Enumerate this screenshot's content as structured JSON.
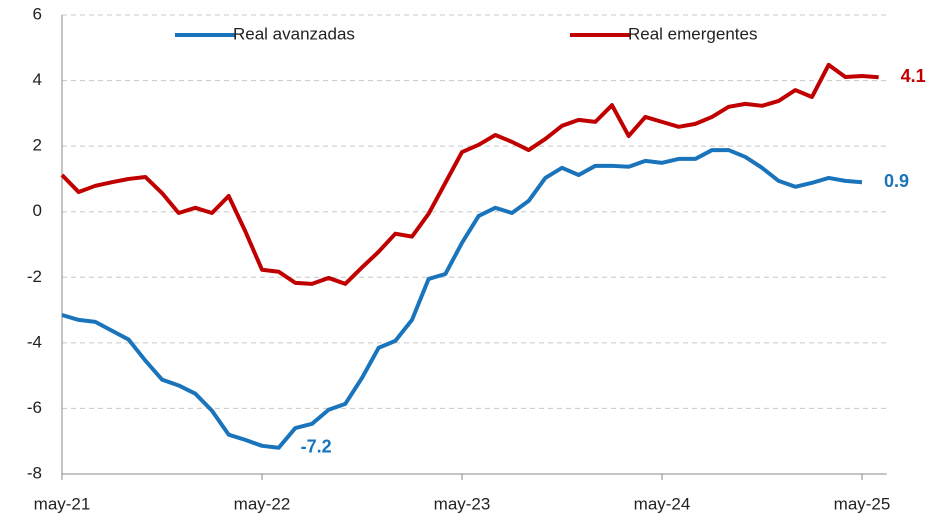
{
  "chart_data": {
    "type": "line",
    "categories": [
      "may-21",
      null,
      null,
      null,
      null,
      null,
      null,
      null,
      null,
      null,
      null,
      null,
      "may-22",
      null,
      null,
      null,
      null,
      null,
      null,
      null,
      null,
      null,
      null,
      null,
      "may-23",
      null,
      null,
      null,
      null,
      null,
      null,
      null,
      null,
      null,
      null,
      null,
      "may-24",
      null,
      null,
      null,
      null,
      null,
      null,
      null,
      null,
      null,
      null,
      null,
      "may-25",
      null
    ],
    "series": [
      {
        "name": "Real avanzadas",
        "color": "#1a74bb",
        "values": [
          -3.15,
          -3.3,
          -3.36,
          -3.63,
          -3.9,
          -4.54,
          -5.12,
          -5.3,
          -5.55,
          -6.07,
          -6.8,
          -6.96,
          -7.14,
          -7.2,
          -6.6,
          -6.47,
          -6.04,
          -5.86,
          -5.07,
          -4.15,
          -3.94,
          -3.3,
          -2.05,
          -1.9,
          -0.95,
          -0.13,
          0.12,
          -0.04,
          0.33,
          1.03,
          1.34,
          1.12,
          1.4,
          1.4,
          1.37,
          1.55,
          1.49,
          1.61,
          1.61,
          1.88,
          1.88,
          1.67,
          1.34,
          0.94,
          0.76,
          0.88,
          1.03,
          0.94,
          0.9,
          null
        ],
        "value_labels": [
          null,
          null,
          null,
          null,
          null,
          null,
          null,
          null,
          null,
          null,
          null,
          null,
          null,
          "-7.2",
          null,
          null,
          null,
          null,
          null,
          null,
          null,
          null,
          null,
          null,
          null,
          null,
          null,
          null,
          null,
          null,
          null,
          null,
          null,
          null,
          null,
          null,
          null,
          null,
          null,
          null,
          null,
          null,
          null,
          null,
          null,
          null,
          null,
          null,
          "0.9",
          null
        ]
      },
      {
        "name": "Real emergentes",
        "color": "#c00000",
        "values": [
          1.12,
          0.6,
          0.79,
          0.9,
          1.0,
          1.06,
          0.57,
          -0.04,
          0.12,
          -0.04,
          0.48,
          -0.6,
          -1.77,
          -1.83,
          -2.17,
          -2.2,
          -2.02,
          -2.2,
          -1.7,
          -1.22,
          -0.67,
          -0.76,
          -0.06,
          0.88,
          1.82,
          2.04,
          2.34,
          2.13,
          1.88,
          2.22,
          2.62,
          2.8,
          2.74,
          3.25,
          2.31,
          2.89,
          2.74,
          2.59,
          2.68,
          2.89,
          3.2,
          3.29,
          3.23,
          3.38,
          3.71,
          3.5,
          4.48,
          4.11,
          4.14,
          4.1
        ],
        "value_labels": [
          null,
          null,
          null,
          null,
          null,
          null,
          null,
          null,
          null,
          null,
          null,
          null,
          null,
          null,
          null,
          null,
          null,
          null,
          null,
          null,
          null,
          null,
          null,
          null,
          null,
          null,
          null,
          null,
          null,
          null,
          null,
          null,
          null,
          null,
          null,
          null,
          null,
          null,
          null,
          null,
          null,
          null,
          null,
          null,
          null,
          null,
          null,
          null,
          null,
          "4.1"
        ]
      }
    ],
    "ylim": [
      -8,
      6
    ],
    "yticks": [
      -8,
      -6,
      -4,
      -2,
      0,
      2,
      4,
      6
    ],
    "grid": true
  }
}
